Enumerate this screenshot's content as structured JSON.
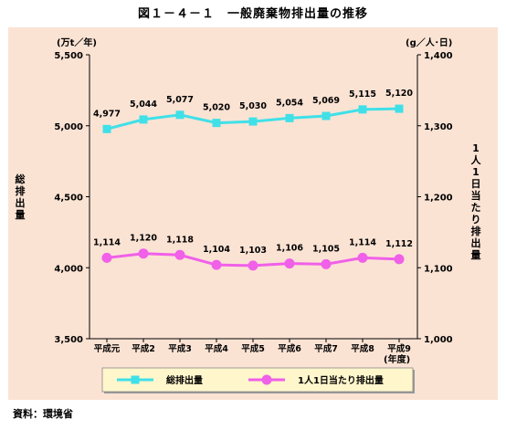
{
  "title": "図１－４－１　一般廃棄物排出量の推移",
  "source": "資料：環境省",
  "chart_data": {
    "type": "line",
    "categories": [
      "平成元",
      "平成2",
      "平成3",
      "平成4",
      "平成5",
      "平成6",
      "平成7",
      "平成8",
      "平成9"
    ],
    "xlabel": "(年度)",
    "left_axis": {
      "unit": "(万t／年)",
      "label": "総排出量",
      "ylim": [
        3500,
        5500
      ],
      "ticks": [
        "3,500",
        "4,000",
        "4,500",
        "5,000",
        "5,500"
      ],
      "tick_values": [
        3500,
        4000,
        4500,
        5000,
        5500
      ]
    },
    "right_axis": {
      "unit": "(g／人･日)",
      "label": "1人1日当たり排出量",
      "ylim": [
        1000,
        1400
      ],
      "ticks": [
        "1,000",
        "1,100",
        "1,200",
        "1,300",
        "1,400"
      ],
      "tick_values": [
        1000,
        1100,
        1200,
        1300,
        1400
      ]
    },
    "series": [
      {
        "name": "総排出量",
        "axis": "left",
        "color": "#40e0e8",
        "marker": "square",
        "values": [
          4977,
          5044,
          5077,
          5020,
          5030,
          5054,
          5069,
          5115,
          5120
        ],
        "labels": [
          "4,977",
          "5,044",
          "5,077",
          "5,020",
          "5,030",
          "5,054",
          "5,069",
          "5,115",
          "5,120"
        ]
      },
      {
        "name": "1人1日当たり排出量",
        "axis": "right",
        "color": "#f060e8",
        "marker": "circle",
        "values": [
          1114,
          1120,
          1118,
          1104,
          1103,
          1106,
          1105,
          1114,
          1112
        ],
        "labels": [
          "1,114",
          "1,120",
          "1,118",
          "1,104",
          "1,103",
          "1,106",
          "1,105",
          "1,114",
          "1,112"
        ]
      }
    ],
    "legend_position": "bottom"
  }
}
